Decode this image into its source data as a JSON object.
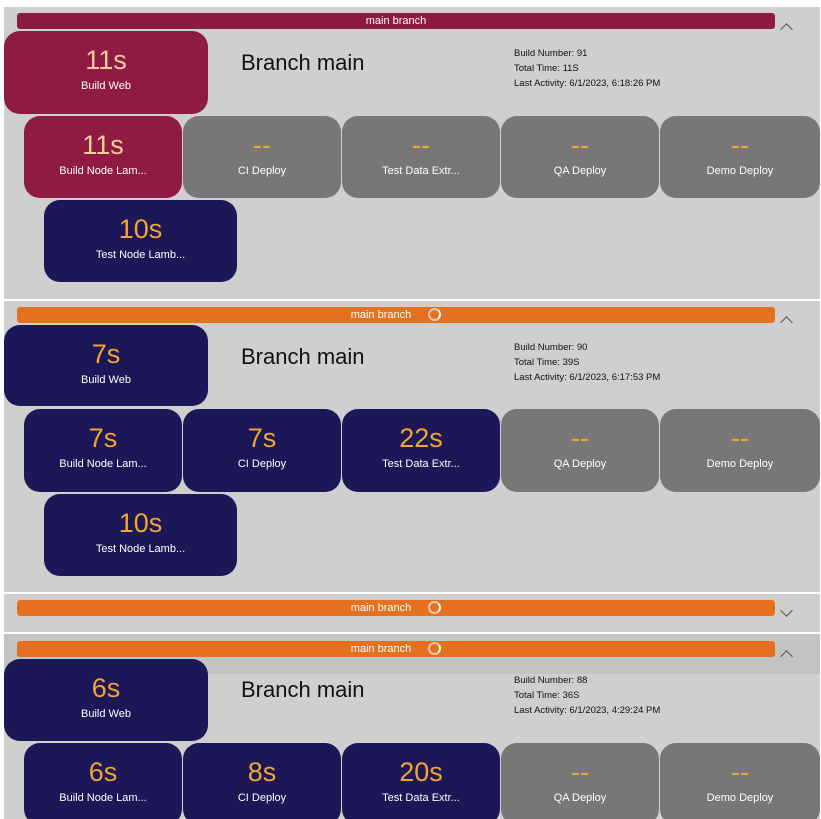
{
  "pipelines": [
    {
      "bar_label": "main branch",
      "bar_color": "#8c1a43",
      "loading": false,
      "expanded": true,
      "title": "Branch main",
      "info": {
        "build_number": "Build Number: 91",
        "total_time": "Total Time: 11S",
        "last_activity": "Last Activity: 6/1/2023, 6:18:26 PM"
      },
      "build_web": {
        "time": "11s",
        "name": "Build Web",
        "status": "failed"
      },
      "stages": [
        {
          "time": "11s",
          "name": "Build Node Lam...",
          "status": "failed"
        },
        {
          "time": "--",
          "name": "CI Deploy",
          "status": "pending"
        },
        {
          "time": "--",
          "name": "Test Data Extr...",
          "status": "pending"
        },
        {
          "time": "--",
          "name": "QA Deploy",
          "status": "pending"
        },
        {
          "time": "--",
          "name": "Demo Deploy",
          "status": "pending"
        }
      ],
      "test": {
        "time": "10s",
        "name": "Test Node Lamb...",
        "status": "complete"
      }
    },
    {
      "bar_label": "main branch",
      "bar_color": "#e5701f",
      "loading": true,
      "expanded": true,
      "title": "Branch main",
      "info": {
        "build_number": "Build Number: 90",
        "total_time": "Total Time: 39S",
        "last_activity": "Last Activity: 6/1/2023, 6:17:53 PM"
      },
      "build_web": {
        "time": "7s",
        "name": "Build Web",
        "status": "complete"
      },
      "stages": [
        {
          "time": "7s",
          "name": "Build Node Lam...",
          "status": "complete"
        },
        {
          "time": "7s",
          "name": "CI Deploy",
          "status": "complete"
        },
        {
          "time": "22s",
          "name": "Test Data Extr...",
          "status": "complete"
        },
        {
          "time": "--",
          "name": "QA Deploy",
          "status": "pending"
        },
        {
          "time": "--",
          "name": "Demo Deploy",
          "status": "pending"
        }
      ],
      "test": {
        "time": "10s",
        "name": "Test Node Lamb...",
        "status": "complete"
      }
    },
    {
      "bar_label": "main branch",
      "bar_color": "#e5701f",
      "loading": true,
      "expanded": false
    },
    {
      "bar_label": "main branch",
      "bar_color": "#e5701f",
      "loading": true,
      "expanded": true,
      "title": "Branch main",
      "info": {
        "build_number": "Build Number: 88",
        "total_time": "Total Time: 36S",
        "last_activity": "Last Activity: 6/1/2023, 4:29:24 PM"
      },
      "build_web": {
        "time": "6s",
        "name": "Build Web",
        "status": "complete"
      },
      "stages": [
        {
          "time": "6s",
          "name": "Build Node Lam...",
          "status": "complete"
        },
        {
          "time": "8s",
          "name": "CI Deploy",
          "status": "complete"
        },
        {
          "time": "20s",
          "name": "Test Data Extr...",
          "status": "complete"
        },
        {
          "time": "--",
          "name": "QA Deploy",
          "status": "pending"
        },
        {
          "time": "--",
          "name": "Demo Deploy",
          "status": "pending"
        }
      ]
    }
  ],
  "status_colors": {
    "failed": "#8f1a44",
    "complete": "#1c1858",
    "pending": "#777777"
  }
}
